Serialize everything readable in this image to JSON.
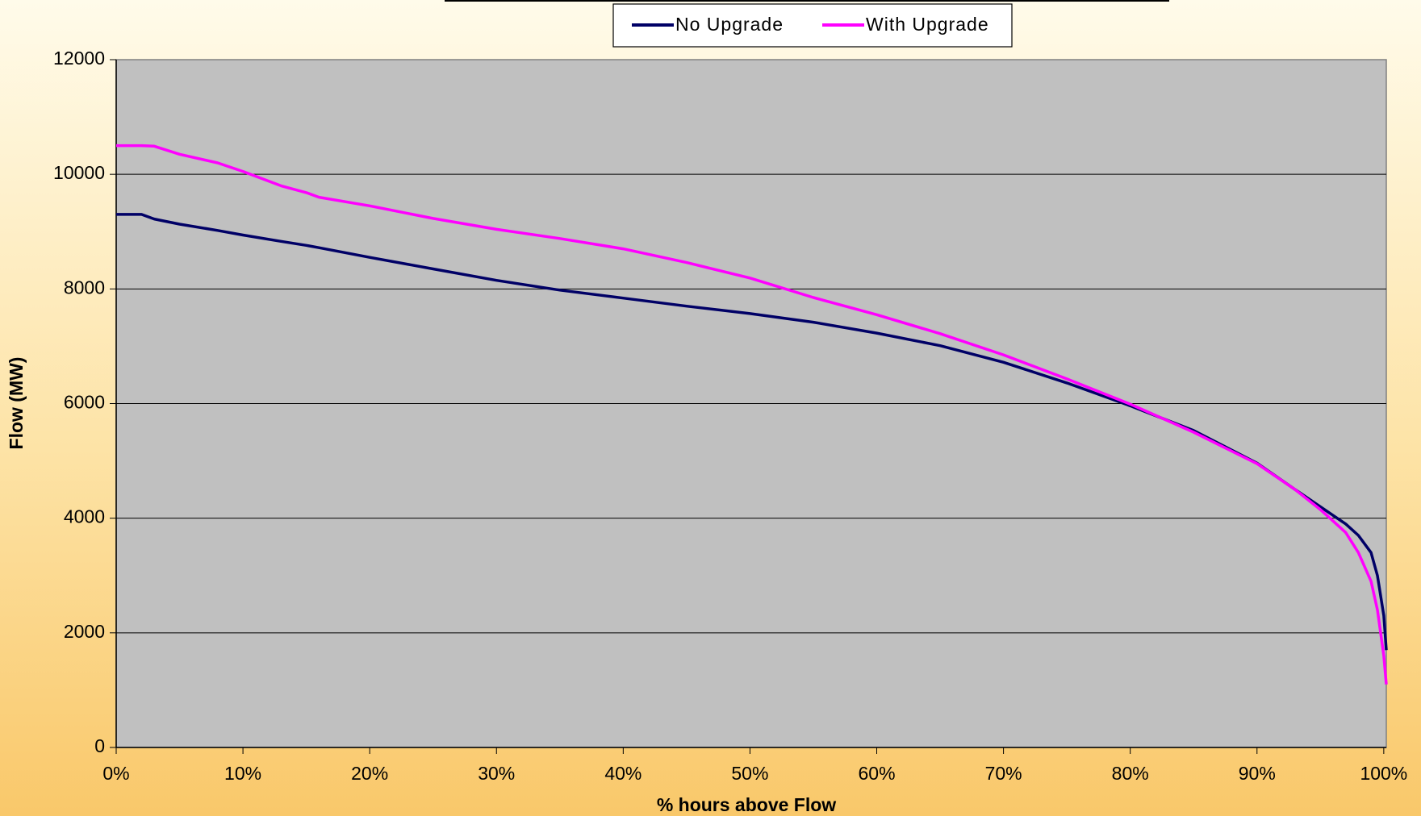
{
  "chart_data": {
    "type": "line",
    "x_label": "% hours above Flow",
    "y_label": "Flow (MW)",
    "x": [
      0,
      2,
      3,
      5,
      8,
      10,
      13,
      15,
      16,
      20,
      25,
      30,
      35,
      40,
      45,
      50,
      55,
      60,
      65,
      70,
      75,
      80,
      85,
      90,
      93,
      95,
      97,
      98,
      99,
      99.5,
      100,
      100.2
    ],
    "series": [
      {
        "name": "No Upgrade",
        "color": "#000066",
        "values": [
          9300,
          9300,
          9220,
          9130,
          9020,
          8940,
          8830,
          8760,
          8720,
          8550,
          8350,
          8150,
          7980,
          7840,
          7700,
          7570,
          7420,
          7230,
          7010,
          6720,
          6360,
          5960,
          5530,
          4960,
          4500,
          4200,
          3900,
          3700,
          3400,
          3000,
          2300,
          1700
        ]
      },
      {
        "name": "With Upgrade",
        "color": "#ff00ff",
        "values": [
          10500,
          10500,
          10490,
          10350,
          10200,
          10050,
          9800,
          9680,
          9600,
          9450,
          9230,
          9040,
          8880,
          8700,
          8460,
          8190,
          7850,
          7550,
          7220,
          6850,
          6430,
          5990,
          5500,
          4950,
          4500,
          4150,
          3750,
          3400,
          2900,
          2400,
          1600,
          1100
        ]
      }
    ],
    "xlim": [
      0,
      100.2
    ],
    "xticks": [
      {
        "value": 0,
        "label": "0%"
      },
      {
        "value": 10,
        "label": "10%"
      },
      {
        "value": 20,
        "label": "20%"
      },
      {
        "value": 30,
        "label": "30%"
      },
      {
        "value": 40,
        "label": "40%"
      },
      {
        "value": 50,
        "label": "50%"
      },
      {
        "value": 60,
        "label": "60%"
      },
      {
        "value": 70,
        "label": "70%"
      },
      {
        "value": 80,
        "label": "80%"
      },
      {
        "value": 90,
        "label": "90%"
      },
      {
        "value": 100,
        "label": "100%"
      }
    ],
    "ylim": [
      0,
      12000
    ],
    "yticks": [
      0,
      2000,
      4000,
      6000,
      8000,
      10000,
      12000
    ],
    "grid": true,
    "legend": "top"
  }
}
